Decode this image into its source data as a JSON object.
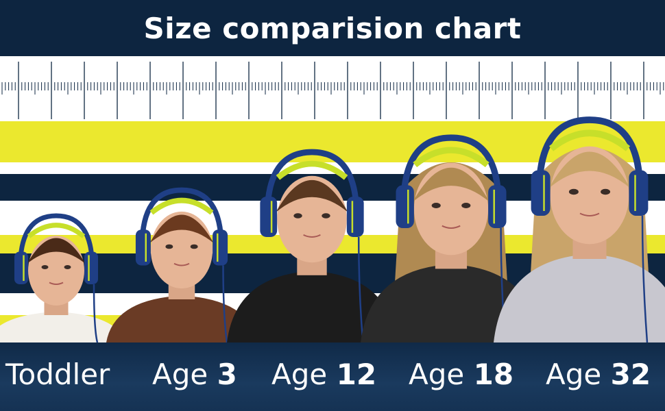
{
  "header": {
    "title": "Size comparision chart"
  },
  "colors": {
    "navy": "#0d2540",
    "yellow": "#ebe82e",
    "white": "#ffffff",
    "headphone_blue": "#1f3f86",
    "headphone_accent": "#c7df2a"
  },
  "labels": [
    {
      "prefix": "Toddler",
      "number": ""
    },
    {
      "prefix": "Age",
      "number": "3"
    },
    {
      "prefix": "Age",
      "number": "12"
    },
    {
      "prefix": "Age",
      "number": "18"
    },
    {
      "prefix": "Age",
      "number": "32"
    }
  ]
}
